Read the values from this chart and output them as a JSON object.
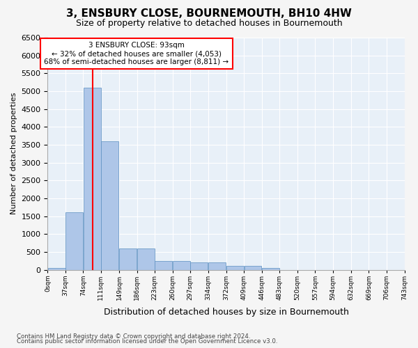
{
  "title": "3, ENSBURY CLOSE, BOURNEMOUTH, BH10 4HW",
  "subtitle": "Size of property relative to detached houses in Bournemouth",
  "xlabel": "Distribution of detached houses by size in Bournemouth",
  "ylabel": "Number of detached properties",
  "bar_color": "#aec6e8",
  "bar_edge_color": "#5a8fc0",
  "background_color": "#e8f0f8",
  "grid_color": "#ffffff",
  "red_line_x": 93,
  "bin_edges": [
    0,
    37,
    74,
    111,
    149,
    186,
    223,
    260,
    297,
    334,
    372,
    409,
    446,
    483,
    520,
    557,
    594,
    632,
    669,
    706,
    743
  ],
  "bar_heights": [
    50,
    1600,
    5100,
    3600,
    600,
    600,
    250,
    250,
    200,
    200,
    100,
    100,
    50,
    0,
    0,
    0,
    0,
    0,
    0,
    0
  ],
  "ylim": [
    0,
    6500
  ],
  "yticks": [
    0,
    500,
    1000,
    1500,
    2000,
    2500,
    3000,
    3500,
    4000,
    4500,
    5000,
    5500,
    6000,
    6500
  ],
  "annotation_text": "3 ENSBURY CLOSE: 93sqm\n← 32% of detached houses are smaller (4,053)\n68% of semi-detached houses are larger (8,811) →",
  "footer_line1": "Contains HM Land Registry data © Crown copyright and database right 2024.",
  "footer_line2": "Contains public sector information licensed under the Open Government Licence v3.0.",
  "xtick_labels": [
    "0sqm",
    "37sqm",
    "74sqm",
    "111sqm",
    "149sqm",
    "186sqm",
    "223sqm",
    "260sqm",
    "297sqm",
    "334sqm",
    "372sqm",
    "409sqm",
    "446sqm",
    "483sqm",
    "520sqm",
    "557sqm",
    "594sqm",
    "632sqm",
    "669sqm",
    "706sqm",
    "743sqm"
  ]
}
